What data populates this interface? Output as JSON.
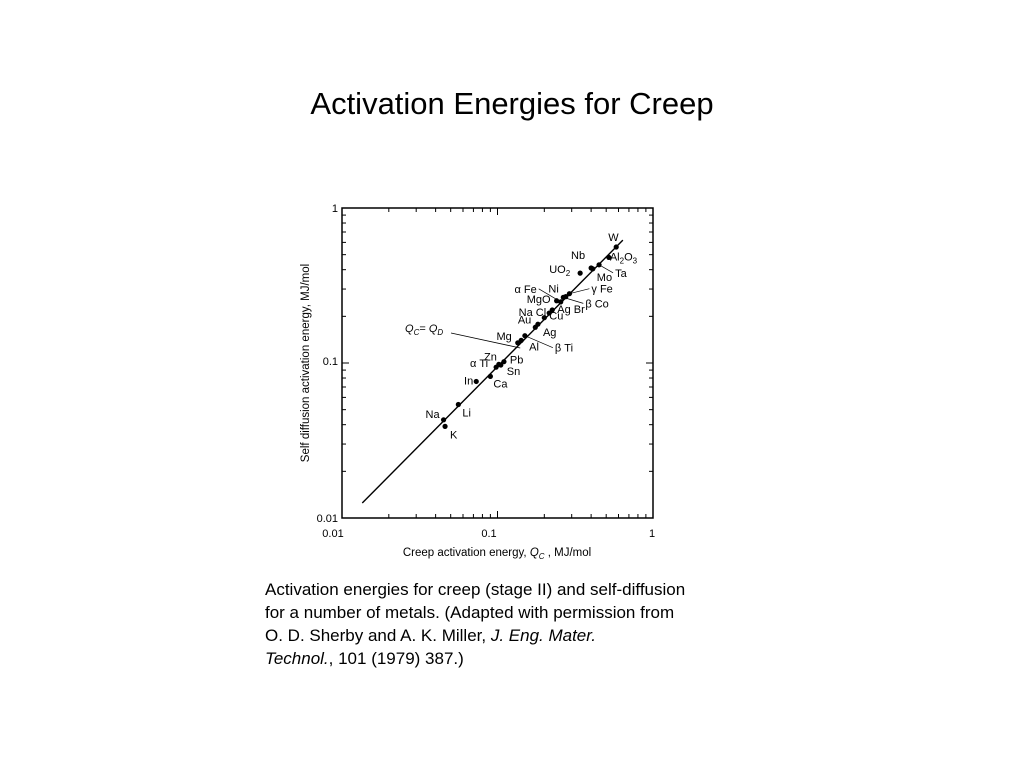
{
  "title": "Activation Energies for Creep",
  "caption": {
    "line1": "Activation energies for creep (stage II) and self-diffusion",
    "line2": "for a number of metals. (Adapted with permission from",
    "line3_plain": "O. D. Sherby and A. K. Miller, ",
    "line3_italic": "J. Eng. Mater.",
    "line4_italic": "Technol.",
    "line4_plain": ", 101 (1979) 387.)"
  },
  "chart_data": {
    "type": "scatter",
    "xlabel": "Creep activation energy, Q_C , MJ/mol",
    "ylabel": "Self diffusion activation energy, MJ/mol",
    "xscale": "log",
    "yscale": "log",
    "xlim": [
      0.01,
      1
    ],
    "ylim": [
      0.01,
      1
    ],
    "x_ticks": [
      "0.01",
      "0.1",
      "1"
    ],
    "y_ticks": [
      "0.01",
      "0.1",
      "1"
    ],
    "line_label": "Q_C = Q_D",
    "points": [
      {
        "label": "K",
        "x": 0.046,
        "y": 0.039
      },
      {
        "label": "Na",
        "x": 0.045,
        "y": 0.043
      },
      {
        "label": "Li",
        "x": 0.056,
        "y": 0.054
      },
      {
        "label": "In",
        "x": 0.073,
        "y": 0.076
      },
      {
        "label": "Ca",
        "x": 0.09,
        "y": 0.082
      },
      {
        "label": "α Ti",
        "x": 0.098,
        "y": 0.094
      },
      {
        "label": "Zn",
        "x": 0.102,
        "y": 0.098
      },
      {
        "label": "Sn",
        "x": 0.105,
        "y": 0.097
      },
      {
        "label": "Pb",
        "x": 0.11,
        "y": 0.102
      },
      {
        "label": "Mg",
        "x": 0.135,
        "y": 0.135
      },
      {
        "label": "Al",
        "x": 0.142,
        "y": 0.14
      },
      {
        "label": "β Ti",
        "x": 0.15,
        "y": 0.15
      },
      {
        "label": "Au",
        "x": 0.175,
        "y": 0.17
      },
      {
        "label": "Ag",
        "x": 0.182,
        "y": 0.178
      },
      {
        "label": "Cu",
        "x": 0.2,
        "y": 0.196
      },
      {
        "label": "Na Cl",
        "x": 0.215,
        "y": 0.21
      },
      {
        "label": "Ag Br",
        "x": 0.225,
        "y": 0.22
      },
      {
        "label": "MgO",
        "x": 0.24,
        "y": 0.252
      },
      {
        "label": "α Fe",
        "x": 0.255,
        "y": 0.248
      },
      {
        "label": "β Co",
        "x": 0.265,
        "y": 0.265
      },
      {
        "label": "Ni",
        "x": 0.275,
        "y": 0.268
      },
      {
        "label": "γ Fe",
        "x": 0.29,
        "y": 0.28
      },
      {
        "label": "UO2",
        "x": 0.34,
        "y": 0.38
      },
      {
        "label": "Nb",
        "x": 0.4,
        "y": 0.41
      },
      {
        "label": "Mo",
        "x": 0.41,
        "y": 0.405
      },
      {
        "label": "Ta",
        "x": 0.45,
        "y": 0.43
      },
      {
        "label": "Al2O3",
        "x": 0.52,
        "y": 0.48
      },
      {
        "label": "W",
        "x": 0.58,
        "y": 0.56
      }
    ]
  }
}
